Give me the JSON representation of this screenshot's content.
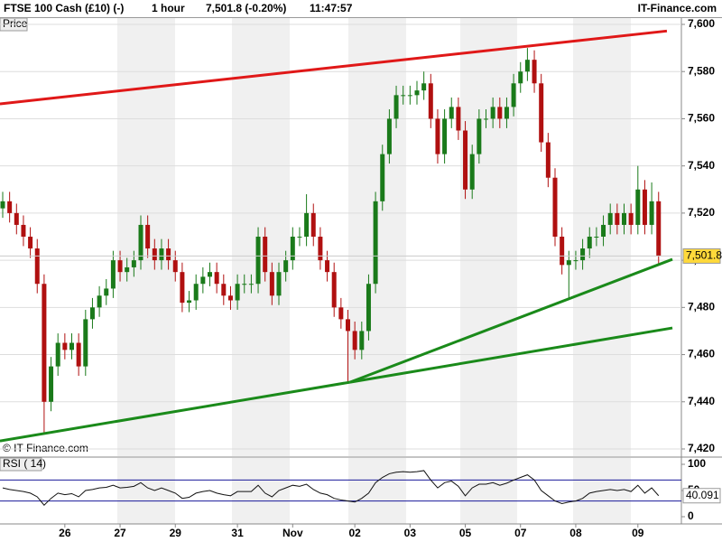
{
  "header": {
    "instrument": "FTSE 100 Cash (£10) (-)",
    "interval": "1 hour",
    "quote": "7,501.8 (-0.20%)",
    "time": "11:47:57",
    "brand": "IT-Finance.com"
  },
  "chart_data": {
    "type": "candlestick",
    "panel_label": "Price",
    "watermark": "© IT-Finance.com",
    "up_color": "#1a7a1a",
    "down_color": "#b01010",
    "categories": [
      null,
      null,
      null,
      null,
      null,
      null,
      null,
      null,
      null,
      "26",
      null,
      null,
      null,
      null,
      null,
      null,
      null,
      "27",
      null,
      null,
      null,
      null,
      null,
      null,
      null,
      "29",
      null,
      null,
      null,
      null,
      null,
      null,
      null,
      null,
      "31",
      null,
      null,
      null,
      null,
      null,
      null,
      null,
      "Nov",
      null,
      null,
      null,
      null,
      null,
      null,
      null,
      null,
      "02",
      null,
      null,
      null,
      null,
      null,
      null,
      null,
      "03",
      null,
      null,
      null,
      null,
      null,
      null,
      null,
      "05",
      null,
      null,
      null,
      null,
      null,
      null,
      null,
      "07",
      null,
      null,
      null,
      null,
      null,
      null,
      null,
      "08",
      null,
      null,
      null,
      null,
      null,
      null,
      null,
      null,
      "09",
      null,
      null,
      null
    ],
    "open": [
      7522,
      7525,
      7520,
      7515,
      7510,
      7505,
      7490,
      7440,
      7455,
      7465,
      7462,
      7465,
      7455,
      7475,
      7480,
      7485,
      7488,
      7500,
      7495,
      7497,
      7500,
      7515,
      7505,
      7500,
      7505,
      7500,
      7495,
      7482,
      7483,
      7490,
      7493,
      7495,
      7490,
      7485,
      7483,
      7490,
      7490,
      7490,
      7510,
      7495,
      7485,
      7495,
      7500,
      7510,
      7510,
      7520,
      7510,
      7500,
      7495,
      7480,
      7475,
      7470,
      7462,
      7470,
      7490,
      7525,
      7545,
      7560,
      7570,
      7570,
      7570,
      7572,
      7575,
      7560,
      7545,
      7560,
      7565,
      7555,
      7530,
      7545,
      7560,
      7560,
      7565,
      7560,
      7565,
      7575,
      7580,
      7585,
      7575,
      7550,
      7535,
      7510,
      7498,
      7500,
      7500,
      7505,
      7510,
      7510,
      7515,
      7520,
      7515,
      7520,
      7515,
      7530,
      7515,
      7525
    ],
    "high": [
      7529,
      7529,
      7524,
      7519,
      7514,
      7509,
      7494,
      7459,
      7469,
      7469,
      7469,
      7469,
      7479,
      7484,
      7489,
      7492,
      7504,
      7504,
      7501,
      7504,
      7519,
      7519,
      7509,
      7509,
      7509,
      7504,
      7499,
      7487,
      7494,
      7497,
      7499,
      7499,
      7494,
      7489,
      7494,
      7494,
      7494,
      7514,
      7514,
      7499,
      7499,
      7504,
      7514,
      7514,
      7528,
      7524,
      7514,
      7504,
      7499,
      7484,
      7479,
      7474,
      7474,
      7494,
      7529,
      7549,
      7564,
      7574,
      7574,
      7574,
      7576,
      7580,
      7579,
      7564,
      7564,
      7569,
      7569,
      7559,
      7549,
      7564,
      7564,
      7569,
      7569,
      7569,
      7579,
      7584,
      7590,
      7589,
      7579,
      7554,
      7539,
      7514,
      7504,
      7504,
      7509,
      7514,
      7514,
      7519,
      7524,
      7524,
      7524,
      7524,
      7540,
      7534,
      7533,
      7529
    ],
    "low": [
      7518,
      7516,
      7511,
      7506,
      7501,
      7486,
      7427,
      7436,
      7451,
      7458,
      7458,
      7451,
      7451,
      7471,
      7476,
      7481,
      7484,
      7491,
      7491,
      7493,
      7496,
      7501,
      7496,
      7496,
      7496,
      7491,
      7478,
      7478,
      7479,
      7486,
      7489,
      7486,
      7481,
      7479,
      7479,
      7486,
      7486,
      7486,
      7491,
      7481,
      7481,
      7491,
      7496,
      7506,
      7506,
      7506,
      7496,
      7491,
      7476,
      7471,
      7448,
      7458,
      7458,
      7466,
      7486,
      7521,
      7541,
      7556,
      7566,
      7566,
      7566,
      7568,
      7556,
      7541,
      7541,
      7556,
      7551,
      7526,
      7526,
      7541,
      7556,
      7556,
      7556,
      7556,
      7561,
      7571,
      7576,
      7571,
      7546,
      7531,
      7506,
      7494,
      7484,
      7496,
      7496,
      7501,
      7506,
      7506,
      7511,
      7511,
      7511,
      7511,
      7511,
      7511,
      7511,
      7498
    ],
    "close": [
      7525,
      7520,
      7515,
      7510,
      7505,
      7490,
      7440,
      7455,
      7465,
      7462,
      7465,
      7455,
      7475,
      7480,
      7485,
      7488,
      7500,
      7495,
      7497,
      7500,
      7515,
      7505,
      7500,
      7505,
      7500,
      7495,
      7482,
      7483,
      7490,
      7493,
      7495,
      7490,
      7485,
      7483,
      7490,
      7490,
      7490,
      7510,
      7495,
      7485,
      7495,
      7500,
      7510,
      7510,
      7520,
      7510,
      7500,
      7495,
      7480,
      7475,
      7470,
      7462,
      7470,
      7490,
      7525,
      7545,
      7560,
      7570,
      7570,
      7570,
      7572,
      7575,
      7560,
      7545,
      7560,
      7565,
      7555,
      7530,
      7545,
      7560,
      7560,
      7565,
      7560,
      7565,
      7575,
      7580,
      7585,
      7575,
      7550,
      7535,
      7510,
      7498,
      7500,
      7500,
      7505,
      7510,
      7510,
      7515,
      7520,
      7515,
      7520,
      7515,
      7530,
      7515,
      7525,
      7501.8
    ],
    "ylim": [
      7420,
      7600
    ],
    "yticks": [
      {
        "value": 7420,
        "label": "7,420"
      },
      {
        "value": 7440,
        "label": "7,440"
      },
      {
        "value": 7460,
        "label": "7,460"
      },
      {
        "value": 7480,
        "label": "7,480"
      },
      {
        "value": 7500,
        "label": "7,500"
      },
      {
        "value": 7520,
        "label": "7,520"
      },
      {
        "value": 7540,
        "label": "7,540"
      },
      {
        "value": 7560,
        "label": "7,560"
      },
      {
        "value": 7580,
        "label": "7,580"
      },
      {
        "value": 7600,
        "label": "7,600"
      }
    ],
    "grid": true,
    "last_price": {
      "value": 7501.8,
      "label": "7,501.8"
    },
    "trendlines": [
      {
        "color": "#e01818",
        "x": [
          -0.4,
          96.2
        ],
        "y": [
          7566.3,
          7597.2
        ]
      },
      {
        "color": "#1a8a1a",
        "x": [
          -0.4,
          50.3
        ],
        "y": [
          7423.4,
          7448.3
        ]
      },
      {
        "color": "#1a8a1a",
        "x": [
          50.3,
          97
        ],
        "y": [
          7448.3,
          7500.4
        ]
      },
      {
        "color": "#1a8a1a",
        "x": [
          50.3,
          97
        ],
        "y": [
          7448.3,
          7471.3
        ]
      }
    ],
    "rsi": {
      "label": "RSI ( 14)",
      "ylim": [
        0,
        100
      ],
      "yticks": [
        0,
        50,
        100
      ],
      "levels": [
        30,
        70
      ],
      "level_color": "#1a1a9a",
      "values": [
        55,
        52,
        50,
        48,
        45,
        38,
        22,
        35,
        45,
        42,
        44,
        38,
        50,
        52,
        55,
        56,
        60,
        55,
        56,
        58,
        65,
        55,
        50,
        55,
        50,
        45,
        35,
        37,
        45,
        48,
        50,
        45,
        42,
        40,
        48,
        48,
        48,
        60,
        45,
        38,
        50,
        55,
        60,
        58,
        62,
        52,
        45,
        42,
        35,
        32,
        30,
        28,
        35,
        45,
        65,
        75,
        82,
        85,
        86,
        85,
        86,
        88,
        70,
        55,
        65,
        68,
        58,
        40,
        55,
        62,
        62,
        65,
        60,
        64,
        70,
        75,
        80,
        70,
        50,
        40,
        30,
        25,
        28,
        30,
        35,
        45,
        48,
        50,
        52,
        50,
        52,
        48,
        60,
        45,
        55,
        40.091
      ],
      "last": {
        "value": 40.091,
        "label": "40.091"
      }
    }
  }
}
